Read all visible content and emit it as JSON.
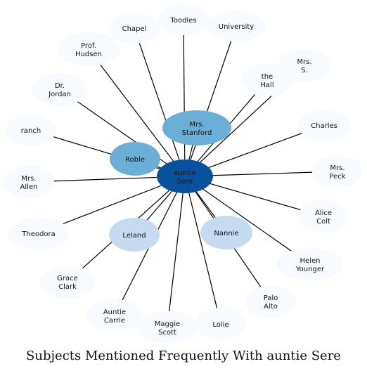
{
  "title": "Subjects Mentioned Frequently With auntie Sere",
  "center": {
    "id": "center",
    "label": [
      "auntie",
      "Sere"
    ]
  },
  "nodes": [
    {
      "id": "toodles",
      "label": [
        "Toodles"
      ]
    },
    {
      "id": "chapel",
      "label": [
        "Chapel"
      ]
    },
    {
      "id": "university",
      "label": [
        "University"
      ]
    },
    {
      "id": "prof-hudsen",
      "label": [
        "Prof.",
        "Hudsen"
      ]
    },
    {
      "id": "mrs-s",
      "label": [
        "Mrs.",
        "S."
      ]
    },
    {
      "id": "the-hall",
      "label": [
        "the",
        "Hall"
      ]
    },
    {
      "id": "dr-jordan",
      "label": [
        "Dr.",
        "Jordan"
      ]
    },
    {
      "id": "mrs-stanford",
      "label": [
        "Mrs.",
        "Stanford"
      ]
    },
    {
      "id": "charles",
      "label": [
        "Charles"
      ]
    },
    {
      "id": "ranch",
      "label": [
        "ranch"
      ]
    },
    {
      "id": "roble",
      "label": [
        "Roble"
      ]
    },
    {
      "id": "mrs-peck",
      "label": [
        "Mrs.",
        "Peck"
      ]
    },
    {
      "id": "mrs-allen",
      "label": [
        "Mrs.",
        "Allen"
      ]
    },
    {
      "id": "alice-colt",
      "label": [
        "Alice",
        "Colt"
      ]
    },
    {
      "id": "theodora",
      "label": [
        "Theodora"
      ]
    },
    {
      "id": "nannie",
      "label": [
        "Nannie"
      ]
    },
    {
      "id": "leland",
      "label": [
        "Leland"
      ]
    },
    {
      "id": "helen-younger",
      "label": [
        "Helen",
        "Younger"
      ]
    },
    {
      "id": "grace-clark",
      "label": [
        "Grace",
        "Clark"
      ]
    },
    {
      "id": "palo-alto",
      "label": [
        "Palo",
        "Alto"
      ]
    },
    {
      "id": "auntie-carrie",
      "label": [
        "Auntie",
        "Carrie"
      ]
    },
    {
      "id": "lolie",
      "label": [
        "Lolie"
      ]
    },
    {
      "id": "maggie-scott",
      "label": [
        "Maggie",
        "Scott"
      ]
    }
  ],
  "edges": [
    [
      "center",
      "toodles"
    ],
    [
      "center",
      "chapel"
    ],
    [
      "center",
      "university"
    ],
    [
      "center",
      "prof-hudsen"
    ],
    [
      "center",
      "mrs-s"
    ],
    [
      "center",
      "the-hall"
    ],
    [
      "center",
      "dr-jordan"
    ],
    [
      "center",
      "mrs-stanford"
    ],
    [
      "center",
      "charles"
    ],
    [
      "center",
      "ranch"
    ],
    [
      "center",
      "roble"
    ],
    [
      "center",
      "mrs-peck"
    ],
    [
      "center",
      "mrs-allen"
    ],
    [
      "center",
      "alice-colt"
    ],
    [
      "center",
      "theodora"
    ],
    [
      "center",
      "nannie"
    ],
    [
      "center",
      "leland"
    ],
    [
      "center",
      "helen-younger"
    ],
    [
      "center",
      "grace-clark"
    ],
    [
      "center",
      "palo-alto"
    ],
    [
      "center",
      "auntie-carrie"
    ],
    [
      "center",
      "lolie"
    ],
    [
      "center",
      "maggie-scott"
    ]
  ],
  "colors": {
    "center": "#08519c",
    "strong": "#6baed6",
    "medium": "#c6dbef",
    "light": "#f7fbff",
    "edge": "#000000"
  },
  "node_tiers": {
    "center": "center",
    "mrs-stanford": "strong",
    "roble": "strong",
    "nannie": "medium",
    "leland": "medium"
  }
}
